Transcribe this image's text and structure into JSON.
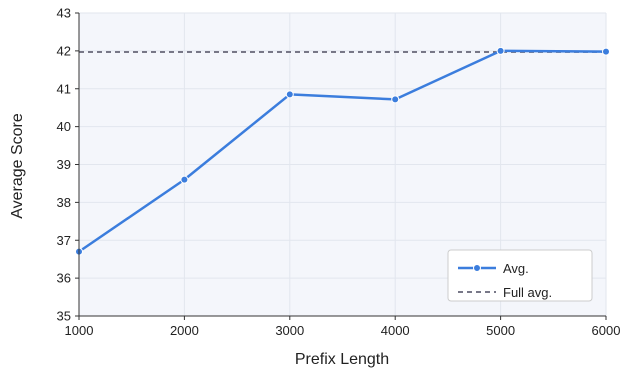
{
  "chart_data": {
    "type": "line",
    "title": "",
    "xlabel": "Prefix Length",
    "ylabel": "Average Score",
    "x": [
      1000,
      2000,
      3000,
      4000,
      5000,
      6000
    ],
    "xlim": [
      1000,
      6000
    ],
    "ylim": [
      35,
      43
    ],
    "xticks": [
      1000,
      2000,
      3000,
      4000,
      5000,
      6000
    ],
    "yticks": [
      35,
      36,
      37,
      38,
      39,
      40,
      41,
      42,
      43
    ],
    "grid": true,
    "legend_position": "bottom-right",
    "series": [
      {
        "name": "Avg.",
        "style": "solid-with-markers",
        "color": "#3b7ddd",
        "values": [
          36.7,
          38.6,
          40.85,
          40.72,
          42.0,
          41.98
        ]
      }
    ],
    "reference_lines": [
      {
        "name": "Full avg.",
        "style": "dashed",
        "color": "#666677",
        "y": 41.97
      }
    ]
  }
}
